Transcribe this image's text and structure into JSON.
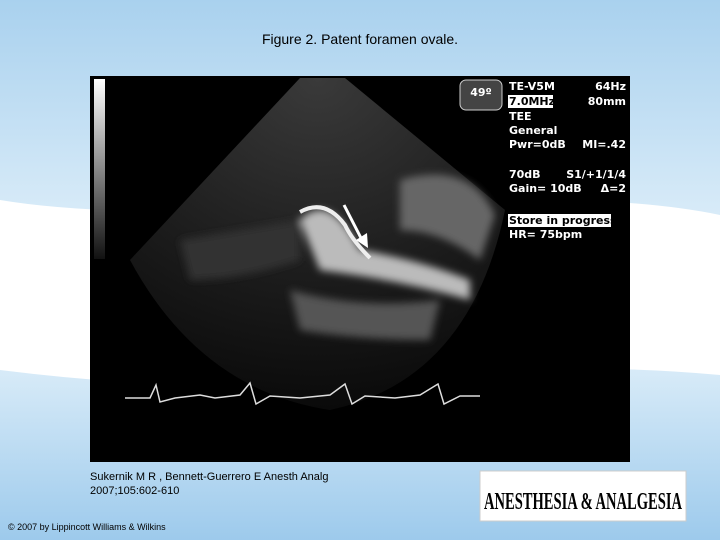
{
  "header": {
    "title": "Figure 2. Patent foramen ovale."
  },
  "image": {
    "angle": "49º",
    "overlay_left": [
      "TE-V5M",
      "7.0MHz",
      "TEE",
      "General",
      "Pwr=0dB",
      "70dB",
      "Gain= 10dB",
      "Store in progress",
      "HR= 75bpm"
    ],
    "overlay_right": [
      "64Hz",
      "80mm",
      "MI=.42",
      "S1/+1/1/4",
      "Δ=2"
    ]
  },
  "citation": [
    "Sukernik M R , Bennett-Guerrero E Anesth Analg",
    "2007;105:602-610"
  ],
  "copyright": "© 2007 by Lippincott Williams & Wilkins",
  "logo": "ANESTHESIA & ANALGESIA"
}
